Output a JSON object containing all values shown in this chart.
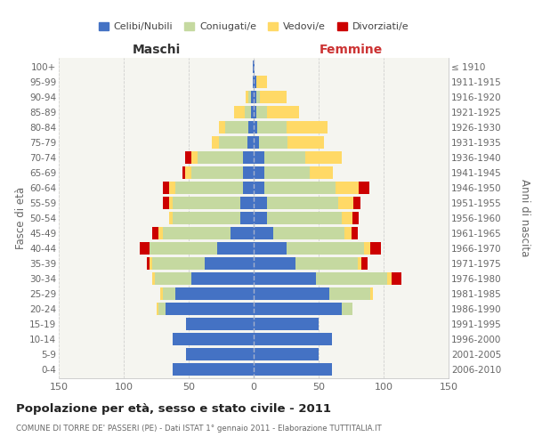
{
  "age_groups": [
    "0-4",
    "5-9",
    "10-14",
    "15-19",
    "20-24",
    "25-29",
    "30-34",
    "35-39",
    "40-44",
    "45-49",
    "50-54",
    "55-59",
    "60-64",
    "65-69",
    "70-74",
    "75-79",
    "80-84",
    "85-89",
    "90-94",
    "95-99",
    "100+"
  ],
  "birth_years": [
    "2006-2010",
    "2001-2005",
    "1996-2000",
    "1991-1995",
    "1986-1990",
    "1981-1985",
    "1976-1980",
    "1971-1975",
    "1966-1970",
    "1961-1965",
    "1956-1960",
    "1951-1955",
    "1946-1950",
    "1941-1945",
    "1936-1940",
    "1931-1935",
    "1926-1930",
    "1921-1925",
    "1916-1920",
    "1911-1915",
    "≤ 1910"
  ],
  "maschi": {
    "celibe": [
      62,
      52,
      62,
      52,
      68,
      60,
      48,
      38,
      28,
      18,
      10,
      10,
      8,
      8,
      8,
      5,
      4,
      2,
      2,
      1,
      1
    ],
    "coniugato": [
      0,
      0,
      0,
      0,
      5,
      10,
      28,
      40,
      52,
      52,
      52,
      52,
      52,
      40,
      35,
      22,
      18,
      5,
      2,
      0,
      0
    ],
    "vedovo": [
      0,
      0,
      0,
      0,
      2,
      2,
      2,
      2,
      0,
      3,
      3,
      3,
      5,
      5,
      5,
      5,
      5,
      8,
      2,
      0,
      0
    ],
    "divorziato": [
      0,
      0,
      0,
      0,
      0,
      0,
      0,
      2,
      8,
      5,
      0,
      5,
      5,
      2,
      5,
      0,
      0,
      0,
      0,
      0,
      0
    ]
  },
  "femmine": {
    "nubile": [
      60,
      50,
      60,
      50,
      68,
      58,
      48,
      32,
      25,
      15,
      10,
      10,
      8,
      8,
      8,
      4,
      3,
      2,
      2,
      2,
      1
    ],
    "coniugata": [
      0,
      0,
      0,
      0,
      8,
      32,
      55,
      48,
      60,
      55,
      58,
      55,
      55,
      35,
      32,
      22,
      22,
      8,
      3,
      0,
      0
    ],
    "vedova": [
      0,
      0,
      0,
      0,
      0,
      2,
      3,
      3,
      5,
      5,
      8,
      12,
      18,
      18,
      28,
      28,
      32,
      25,
      20,
      8,
      0
    ],
    "divorziata": [
      0,
      0,
      0,
      0,
      0,
      0,
      8,
      5,
      8,
      5,
      5,
      5,
      8,
      0,
      0,
      0,
      0,
      0,
      0,
      0,
      0
    ]
  },
  "colors": {
    "celibe": "#4472c4",
    "coniugato": "#c5d9a0",
    "vedovo": "#ffd966",
    "divorziato": "#cc0000"
  },
  "title": "Popolazione per età, sesso e stato civile - 2011",
  "subtitle": "COMUNE DI TORRE DE' PASSERI (PE) - Dati ISTAT 1° gennaio 2011 - Elaborazione TUTTITALIA.IT",
  "xlabel_left": "Maschi",
  "xlabel_right": "Femmine",
  "ylabel_left": "Fasce di età",
  "ylabel_right": "Anni di nascita",
  "xlim": 150,
  "bg_color": "#ffffff",
  "plot_bg": "#f5f5f0",
  "grid_color": "#cccccc"
}
